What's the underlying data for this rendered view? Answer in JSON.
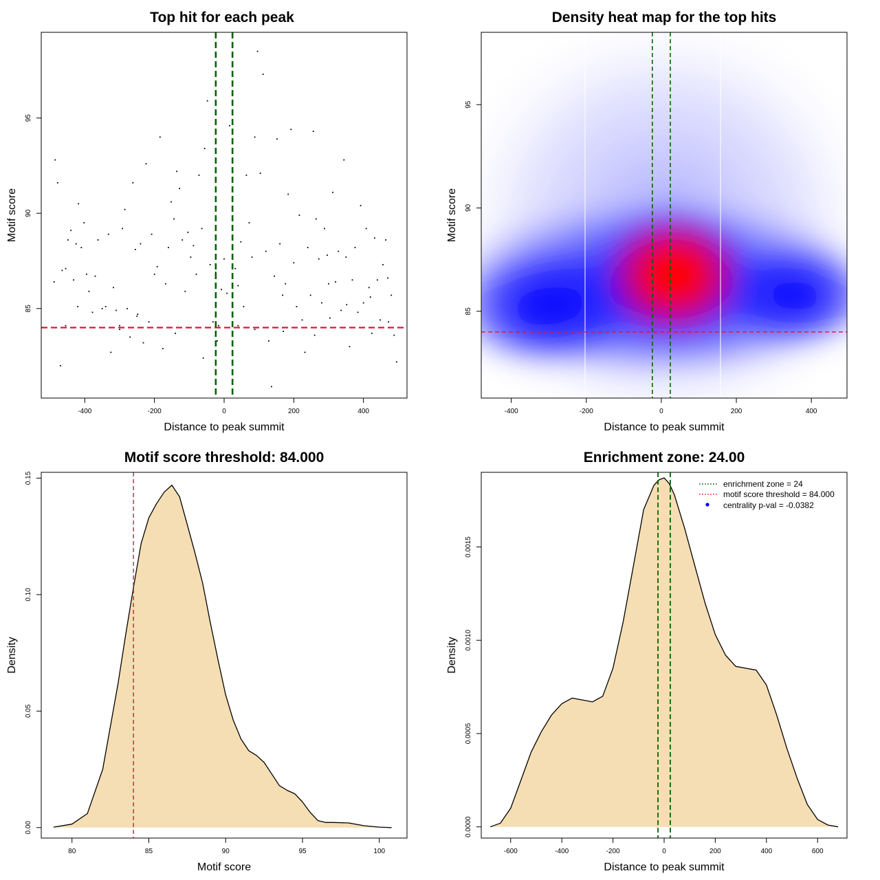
{
  "chart_data": [
    {
      "type": "scatter",
      "title": "Top hit for each peak",
      "xlabel": "Distance to peak summit",
      "ylabel": "Motif score",
      "xlim": [
        -525,
        525
      ],
      "ylim": [
        80.3,
        99.5
      ],
      "xticks": [
        "-400",
        "-200",
        "0",
        "200",
        "400"
      ],
      "yticks": [
        "85",
        "90",
        "95"
      ],
      "xtick_values": [
        -400,
        -200,
        0,
        200,
        400
      ],
      "ytick_values": [
        85,
        90,
        95
      ],
      "vlines": [
        -24,
        24
      ],
      "hline": 84,
      "points": [
        [
          -485,
          92.8
        ],
        [
          -478,
          91.6
        ],
        [
          -488,
          86.4
        ],
        [
          -465,
          87
        ],
        [
          -455,
          87.1
        ],
        [
          -448,
          88.6
        ],
        [
          -440,
          89.1
        ],
        [
          -432,
          86.5
        ],
        [
          -425,
          88.4
        ],
        [
          -418,
          90.5
        ],
        [
          -410,
          88.2
        ],
        [
          -402,
          89.5
        ],
        [
          -395,
          86.8
        ],
        [
          -388,
          85.9
        ],
        [
          -378,
          84.8
        ],
        [
          -370,
          86.7
        ],
        [
          -362,
          88.6
        ],
        [
          -350,
          85
        ],
        [
          -340,
          85.1
        ],
        [
          -332,
          88.9
        ],
        [
          -325,
          82.7
        ],
        [
          -318,
          86.1
        ],
        [
          -310,
          84.9
        ],
        [
          -300,
          84.1
        ],
        [
          -292,
          89.2
        ],
        [
          -285,
          90.2
        ],
        [
          -278,
          85
        ],
        [
          -270,
          83.5
        ],
        [
          -262,
          91.6
        ],
        [
          -255,
          88.1
        ],
        [
          -248,
          84.7
        ],
        [
          -240,
          88.4
        ],
        [
          -232,
          83.2
        ],
        [
          -224,
          92.6
        ],
        [
          -216,
          84.3
        ],
        [
          -208,
          88.9
        ],
        [
          -200,
          86.8
        ],
        [
          -192,
          87.2
        ],
        [
          -184,
          94
        ],
        [
          -176,
          82.9
        ],
        [
          -168,
          86.3
        ],
        [
          -160,
          88.2
        ],
        [
          -152,
          90.6
        ],
        [
          -144,
          89.7
        ],
        [
          -136,
          92.2
        ],
        [
          -128,
          91.3
        ],
        [
          -120,
          88.6
        ],
        [
          -112,
          85.9
        ],
        [
          -104,
          89
        ],
        [
          -96,
          87.7
        ],
        [
          -88,
          88.3
        ],
        [
          -80,
          86.8
        ],
        [
          -72,
          92
        ],
        [
          -64,
          89.2
        ],
        [
          -56,
          93.4
        ],
        [
          -48,
          95.9
        ],
        [
          -40,
          87.3
        ],
        [
          -32,
          84.3
        ],
        [
          -24,
          86.9
        ],
        [
          -16,
          84.1
        ],
        [
          -8,
          86
        ],
        [
          0,
          87.6
        ],
        [
          8,
          85.8
        ],
        [
          16,
          94.6
        ],
        [
          24,
          89.2
        ],
        [
          32,
          87.1
        ],
        [
          40,
          86.2
        ],
        [
          48,
          88.5
        ],
        [
          56,
          85.1
        ],
        [
          64,
          92
        ],
        [
          72,
          89.5
        ],
        [
          80,
          87.7
        ],
        [
          88,
          94
        ],
        [
          96,
          98.5
        ],
        [
          104,
          92.1
        ],
        [
          112,
          97.3
        ],
        [
          120,
          88
        ],
        [
          128,
          83.3
        ],
        [
          136,
          80.9
        ],
        [
          144,
          86.7
        ],
        [
          152,
          93.9
        ],
        [
          160,
          88.4
        ],
        [
          168,
          85.7
        ],
        [
          176,
          86.3
        ],
        [
          184,
          91
        ],
        [
          192,
          94.4
        ],
        [
          200,
          87.4
        ],
        [
          208,
          85.1
        ],
        [
          216,
          89.9
        ],
        [
          224,
          84.4
        ],
        [
          232,
          82.7
        ],
        [
          240,
          88.2
        ],
        [
          248,
          85.7
        ],
        [
          256,
          94.3
        ],
        [
          264,
          89.7
        ],
        [
          272,
          87.6
        ],
        [
          280,
          85.3
        ],
        [
          288,
          89.2
        ],
        [
          296,
          87.8
        ],
        [
          304,
          84.5
        ],
        [
          312,
          91.1
        ],
        [
          320,
          86.4
        ],
        [
          328,
          88
        ],
        [
          336,
          84.9
        ],
        [
          344,
          92.8
        ],
        [
          352,
          85.2
        ],
        [
          360,
          83
        ],
        [
          368,
          86.5
        ],
        [
          376,
          88.2
        ],
        [
          384,
          84.8
        ],
        [
          392,
          90.4
        ],
        [
          400,
          85.3
        ],
        [
          408,
          89.2
        ],
        [
          416,
          86.1
        ],
        [
          424,
          83.7
        ],
        [
          432,
          88.7
        ],
        [
          440,
          86.5
        ],
        [
          448,
          84.4
        ],
        [
          456,
          87.3
        ],
        [
          464,
          88.6
        ],
        [
          472,
          84.3
        ],
        [
          480,
          85.7
        ],
        [
          488,
          83.6
        ],
        [
          495,
          82.2
        ],
        [
          -470,
          82
        ],
        [
          -455,
          84.1
        ],
        [
          -420,
          85.1
        ],
        [
          -300,
          83.9
        ],
        [
          -250,
          84.6
        ],
        [
          -140,
          83.7
        ],
        [
          -60,
          82.4
        ],
        [
          -20,
          83.3
        ],
        [
          40,
          84.1
        ],
        [
          88,
          83.9
        ],
        [
          170,
          83.8
        ],
        [
          260,
          83.6
        ],
        [
          300,
          86.3
        ],
        [
          350,
          87.7
        ],
        [
          420,
          85.6
        ],
        [
          470,
          86.6
        ]
      ]
    },
    {
      "type": "heatmap",
      "title": "Density heat map for the top hits",
      "xlabel": "Distance to peak summit",
      "ylabel": "Motif score",
      "xlim": [
        -480,
        495
      ],
      "ylim": [
        80.8,
        98.5
      ],
      "xticks": [
        "-400",
        "-200",
        "0",
        "200",
        "400"
      ],
      "yticks": [
        "85",
        "90",
        "95"
      ],
      "xtick_values": [
        -400,
        -200,
        0,
        200,
        400
      ],
      "ytick_values": [
        85,
        90,
        95
      ],
      "vlines": [
        -24,
        24
      ],
      "hline": 84,
      "colors": [
        "#ffffff",
        "#0000ff",
        "#ff0000"
      ]
    },
    {
      "type": "area",
      "title": "Motif score threshold: 84.000",
      "xlabel": "Motif score",
      "ylabel": "Density",
      "xlim": [
        78,
        101.8
      ],
      "ylim": [
        -0.0045,
        0.1525
      ],
      "xticks": [
        "80",
        "85",
        "90",
        "95",
        "100"
      ],
      "yticks": [
        "0.00",
        "0.05",
        "0.10",
        "0.15"
      ],
      "xtick_values": [
        80,
        85,
        90,
        95,
        100
      ],
      "ytick_values": [
        0,
        0.05,
        0.1,
        0.15
      ],
      "vline": 84,
      "fill_color": "#f5deb3",
      "x": [
        78.8,
        80,
        81,
        82,
        83,
        83.5,
        84,
        84.5,
        85,
        85.5,
        86,
        86.5,
        87,
        87.5,
        88,
        88.5,
        89,
        89.5,
        90,
        90.5,
        91,
        91.5,
        92,
        92.5,
        93,
        93.5,
        94,
        94.5,
        95,
        95.5,
        96,
        96.5,
        97,
        98,
        99,
        100,
        100.8
      ],
      "y": [
        0.0002,
        0.0015,
        0.006,
        0.025,
        0.062,
        0.083,
        0.103,
        0.122,
        0.133,
        0.139,
        0.144,
        0.147,
        0.142,
        0.13,
        0.118,
        0.105,
        0.088,
        0.072,
        0.057,
        0.046,
        0.038,
        0.033,
        0.031,
        0.028,
        0.023,
        0.018,
        0.016,
        0.0145,
        0.011,
        0.0065,
        0.003,
        0.0022,
        0.0022,
        0.002,
        0.0008,
        0.0002,
        0
      ]
    },
    {
      "type": "area",
      "title": "Enrichment zone: 24.00",
      "xlabel": "Distance to peak summit",
      "ylabel": "Density",
      "xlim": [
        -715,
        715
      ],
      "ylim": [
        -6e-05,
        0.0019
      ],
      "xticks": [
        "-600",
        "-400",
        "-200",
        "0",
        "200",
        "400",
        "600"
      ],
      "yticks": [
        "0.0000",
        "0.0005",
        "0.0010",
        "0.0015"
      ],
      "xtick_values": [
        -600,
        -400,
        -200,
        0,
        200,
        400,
        600
      ],
      "ytick_values": [
        0,
        0.0005,
        0.001,
        0.0015
      ],
      "vlines": [
        -24,
        24
      ],
      "fill_color": "#f5deb3",
      "x": [
        -680,
        -640,
        -600,
        -560,
        -520,
        -480,
        -440,
        -400,
        -360,
        -320,
        -280,
        -240,
        -200,
        -160,
        -120,
        -80,
        -40,
        -20,
        0,
        20,
        40,
        80,
        120,
        160,
        200,
        240,
        280,
        320,
        360,
        400,
        440,
        480,
        520,
        560,
        600,
        640,
        680
      ],
      "y": [
        0,
        2e-05,
        0.0001,
        0.00025,
        0.0004,
        0.00051,
        0.0006,
        0.00066,
        0.00069,
        0.00068,
        0.00067,
        0.0007,
        0.00085,
        0.0011,
        0.0014,
        0.0017,
        0.00183,
        0.00186,
        0.00187,
        0.00184,
        0.00178,
        0.0016,
        0.0014,
        0.0012,
        0.00103,
        0.00092,
        0.00086,
        0.00085,
        0.00084,
        0.00076,
        0.0006,
        0.00042,
        0.00026,
        0.00012,
        4e-05,
        1e-05,
        0
      ],
      "legend": [
        {
          "label": "enrichment zone = 24",
          "color": "#006400",
          "kind": "dotted"
        },
        {
          "label": "motif score threshold = 84.000",
          "color": "#dc143c",
          "kind": "dotted"
        },
        {
          "label": "centrality p-val = -0.0382",
          "color": "#0000ff",
          "kind": "point"
        }
      ],
      "legend_position": "top-right"
    }
  ]
}
